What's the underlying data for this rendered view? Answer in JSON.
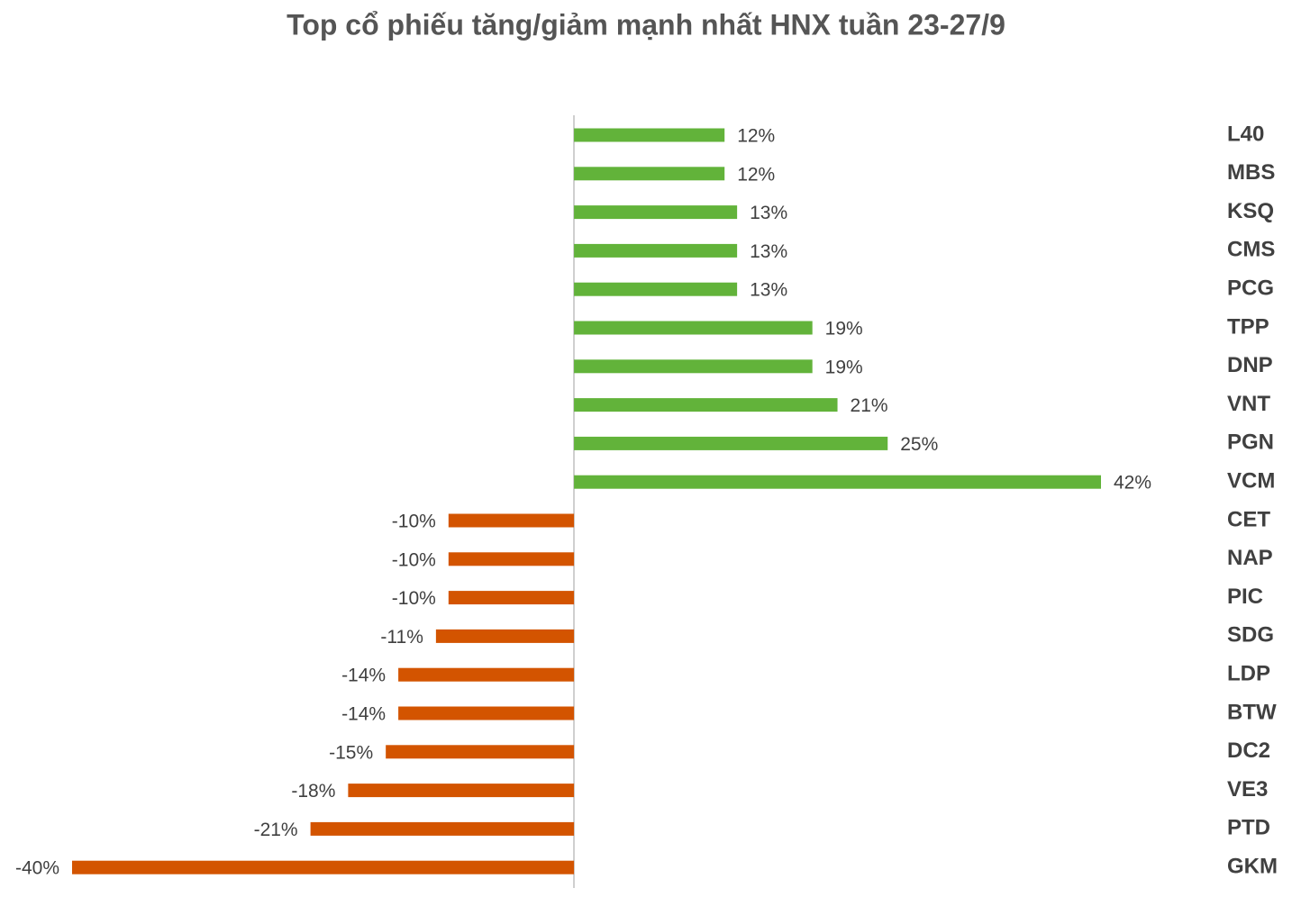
{
  "chart_data": {
    "type": "bar",
    "orientation": "horizontal",
    "title": "Top cổ phiếu tăng/giảm mạnh nhất HNX tuần 23-27/9",
    "categories": [
      "L40",
      "MBS",
      "KSQ",
      "CMS",
      "PCG",
      "TPP",
      "DNP",
      "VNT",
      "PGN",
      "VCM",
      "CET",
      "NAP",
      "PIC",
      "SDG",
      "LDP",
      "BTW",
      "DC2",
      "VE3",
      "PTD",
      "GKM"
    ],
    "values": [
      12,
      12,
      13,
      13,
      13,
      19,
      19,
      21,
      25,
      42,
      -10,
      -10,
      -10,
      -11,
      -14,
      -14,
      -15,
      -18,
      -21,
      -40
    ],
    "value_labels": [
      "12%",
      "12%",
      "13%",
      "13%",
      "13%",
      "19%",
      "19%",
      "21%",
      "25%",
      "42%",
      "-10%",
      "-10%",
      "-10%",
      "-11%",
      "-14%",
      "-14%",
      "-15%",
      "-18%",
      "-21%",
      "-40%"
    ],
    "positive_color": "#62b33a",
    "negative_color": "#d35400",
    "xlim": [
      -40,
      42
    ]
  }
}
